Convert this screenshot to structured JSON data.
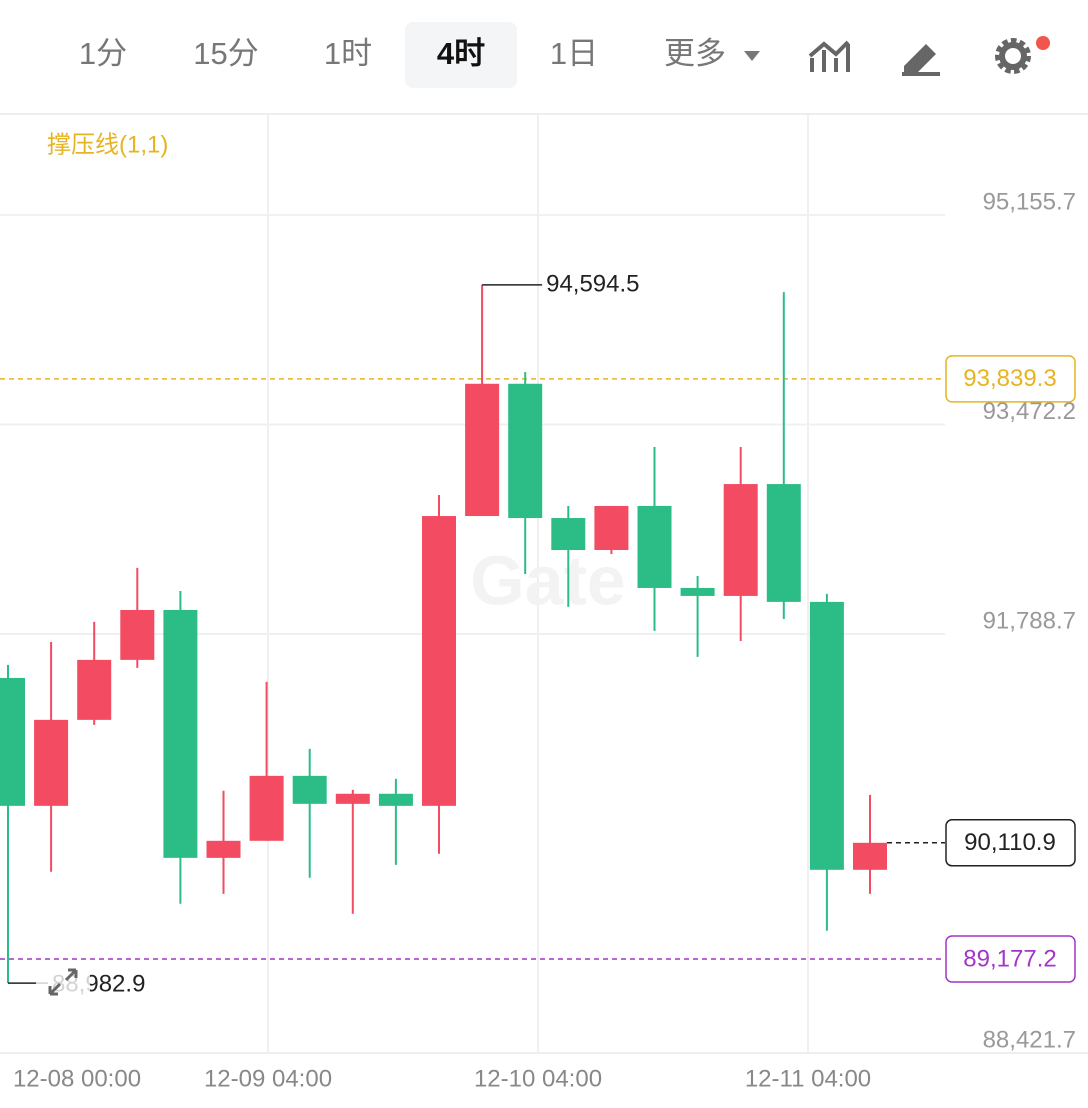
{
  "toolbar": {
    "tabs": [
      "1分",
      "15分",
      "1时",
      "4时",
      "1日",
      "更多"
    ],
    "active_tab": 3
  },
  "chart_data": {
    "type": "candlestick",
    "indicator": "撑压线(1,1)",
    "watermark": "Gate",
    "up_color": "#f24b62",
    "down_color": "#2cbd86",
    "open": [
      91436,
      90408,
      91099,
      91581,
      91982,
      89990,
      90127,
      90649,
      90424,
      90505,
      90408,
      92737,
      93800,
      92721,
      92464,
      92818,
      92159,
      92095,
      92994,
      92047,
      89894
    ],
    "high": [
      91541,
      91725,
      91886,
      92320,
      92135,
      90529,
      91404,
      90866,
      90537,
      90625,
      92906,
      94594.5,
      93894,
      92818,
      92818,
      93292,
      92255,
      93292,
      94537,
      92111,
      90496
    ],
    "low": [
      88982.9,
      89878,
      91059,
      91517,
      89621,
      89701,
      90127,
      89830,
      89541,
      89934,
      90023,
      92737,
      92271,
      92007,
      92432,
      91814,
      91605,
      91733,
      91910,
      89404,
      89701
    ],
    "close": [
      90408,
      91099,
      91581,
      91982,
      89990,
      90127,
      90649,
      90424,
      90505,
      90408,
      92737,
      93800,
      92721,
      92464,
      92818,
      92159,
      92095,
      92994,
      92047,
      89894,
      90110.9
    ],
    "max_label": "94,594.5",
    "min_label": "88,982.9",
    "ylim": [
      88421.7,
      95960
    ],
    "yticks": [
      {
        "value": 88421.7,
        "label": "88,421.7"
      },
      {
        "value": 91788.7,
        "label": "91,788.7"
      },
      {
        "value": 93472.2,
        "label": "93,472.2"
      },
      {
        "value": 95155.7,
        "label": "95,155.7"
      }
    ],
    "x_axis_labels": [
      "12-08 00:00",
      "12-09 04:00",
      "12-10 04:00",
      "12-11 04:00"
    ],
    "price_lines": [
      {
        "value": 93839.3,
        "label": "93,839.3",
        "color": "#e6b422",
        "extend": "full"
      },
      {
        "value": 90110.9,
        "label": "90,110.9",
        "color": "#222222",
        "extend": "last"
      },
      {
        "value": 89177.2,
        "label": "89,177.2",
        "color": "#a335c9",
        "extend": "full"
      }
    ],
    "grid": true
  }
}
